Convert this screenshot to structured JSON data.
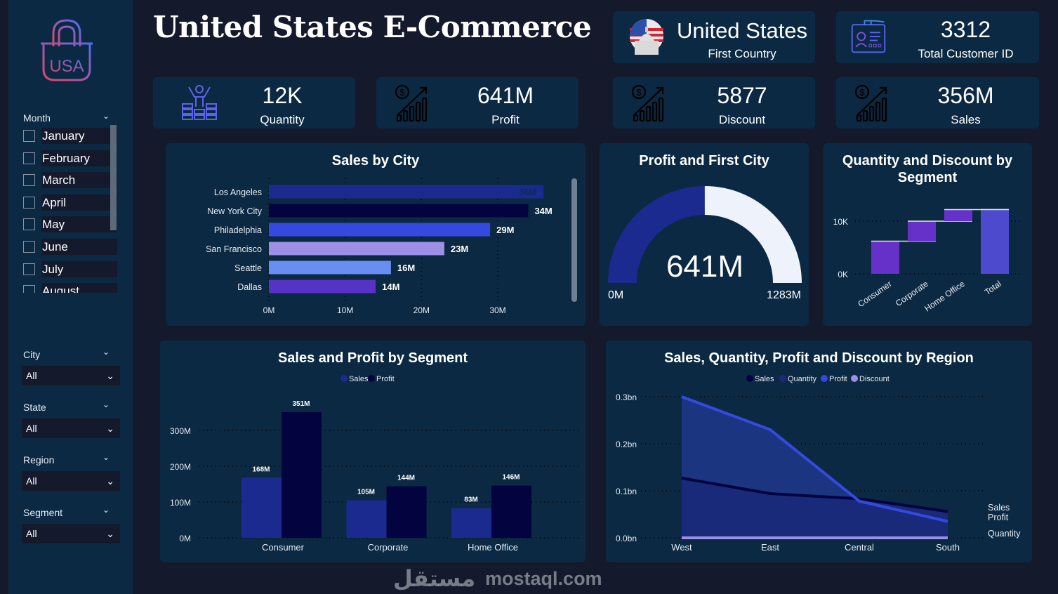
{
  "title": "United States E-Commerce",
  "logo": {
    "text": "USA",
    "icon": "shopping-bag-icon"
  },
  "sidebar": {
    "month": {
      "label": "Month",
      "items": [
        "January",
        "February",
        "March",
        "April",
        "May",
        "June",
        "July",
        "August"
      ]
    },
    "filters": [
      {
        "label": "City",
        "value": "All"
      },
      {
        "label": "State",
        "value": "All"
      },
      {
        "label": "Region",
        "value": "All"
      },
      {
        "label": "Segment",
        "value": "All"
      }
    ]
  },
  "kpis": {
    "country": {
      "value": "United States",
      "label": "First Country",
      "icon": "us-capitol-flag-icon"
    },
    "customers": {
      "value": "3312",
      "label": "Total Customer ID",
      "icon": "id-card-icon"
    },
    "quantity": {
      "value": "12K",
      "label": "Quantity",
      "icon": "person-coins-icon"
    },
    "profit": {
      "value": "641M",
      "label": "Profit",
      "icon": "money-growth-icon"
    },
    "discount": {
      "value": "5877",
      "label": "Discount",
      "icon": "money-growth-icon"
    },
    "sales": {
      "value": "356M",
      "label": "Sales",
      "icon": "money-growth-icon"
    }
  },
  "chart_data": [
    {
      "id": "city",
      "type": "bar",
      "orientation": "horizontal",
      "title": "Sales by City",
      "categories": [
        "Los Angeles",
        "New York City",
        "Philadelphia",
        "San Francisco",
        "Seattle",
        "Dallas"
      ],
      "values": [
        36,
        34,
        29,
        23,
        16,
        14
      ],
      "data_labels": [
        "36M",
        "34M",
        "29M",
        "23M",
        "16M",
        "14M"
      ],
      "colors": [
        "#1b2a8f",
        "#03043f",
        "#3549e0",
        "#9c8fe5",
        "#6a8df2",
        "#5633c6"
      ],
      "xticks": [
        "0M",
        "10M",
        "20M",
        "30M"
      ],
      "xlim": [
        0,
        30
      ],
      "unit": "M",
      "grid": true
    },
    {
      "id": "gauge",
      "type": "gauge",
      "title": "Profit and First City",
      "value": 641,
      "min": 0,
      "max": 1283,
      "value_label": "641M",
      "min_label": "0M",
      "max_label": "1283M",
      "colors": {
        "fill": "#1b2a8f",
        "rest": "#eef3fb"
      }
    },
    {
      "id": "waterfall",
      "type": "waterfall",
      "title": "Quantity and Discount by Segment",
      "categories": [
        "Consumer",
        "Corporate",
        "Home Office",
        "Total"
      ],
      "values": [
        6.2,
        3.8,
        2.2,
        12.2
      ],
      "unit": "K",
      "yticks": [
        "0K",
        "10K"
      ],
      "colors": {
        "step": "#6631c9",
        "total": "#4e4acd"
      },
      "grid": true
    },
    {
      "id": "segment",
      "type": "bar",
      "title": "Sales and Profit by Segment",
      "categories": [
        "Consumer",
        "Corporate",
        "Home Office"
      ],
      "series": [
        {
          "name": "Sales",
          "values": [
            168,
            105,
            83
          ],
          "labels": [
            "168M",
            "105M",
            "83M"
          ],
          "color": "#1a2a8f"
        },
        {
          "name": "Profit",
          "values": [
            351,
            144,
            146
          ],
          "labels": [
            "351M",
            "144M",
            "146M"
          ],
          "color": "#03043f"
        }
      ],
      "yticks": [
        "0M",
        "100M",
        "200M",
        "300M"
      ],
      "ylim": [
        0,
        350
      ],
      "legend": "top",
      "grid": true
    },
    {
      "id": "region",
      "type": "area",
      "title": "Sales, Quantity, Profit and Discount by Region",
      "categories": [
        "West",
        "East",
        "Central",
        "South"
      ],
      "series": [
        {
          "name": "Sales",
          "values": [
            0.127,
            0.094,
            0.083,
            0.056
          ],
          "color": "#03043f"
        },
        {
          "name": "Quantity",
          "values": [
            0.001,
            0.001,
            0.001,
            0.001
          ],
          "color": "#1a2a7a"
        },
        {
          "name": "Profit",
          "values": [
            0.3,
            0.23,
            0.078,
            0.035
          ],
          "color": "#3549e0"
        },
        {
          "name": "Discount",
          "values": [
            0.0,
            0.0,
            0.0,
            0.0
          ],
          "color": "#9c8fe5"
        }
      ],
      "yticks": [
        "0.0bn",
        "0.1bn",
        "0.2bn",
        "0.3bn"
      ],
      "ylim": [
        0,
        0.3
      ],
      "legend": "top",
      "end_labels": [
        "Sales",
        "Profit",
        "Quantity"
      ],
      "grid": true
    }
  ],
  "watermark": {
    "text": "mostaql.com",
    "arabic": "مستقل"
  }
}
